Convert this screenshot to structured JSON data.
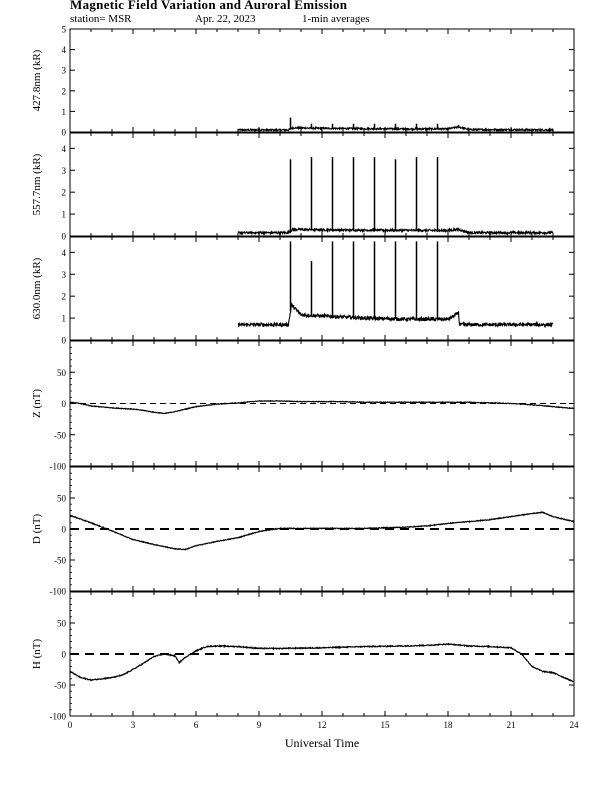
{
  "header": {
    "title": "Magnetic Field Variation and Auroral Emission",
    "station": "station= MSR",
    "date": "Apr. 22, 2023",
    "averaging": "1-min averages"
  },
  "chart_data": [
    {
      "type": "line",
      "ylabel": "427.8nm (kR)",
      "xlim": [
        0,
        24
      ],
      "ylim": [
        0,
        5
      ],
      "yticks": [
        0,
        1,
        2,
        3,
        4,
        5
      ],
      "data_window": [
        8.0,
        23.0
      ],
      "baseline": 0.1,
      "noise": 0.04,
      "spikes": [
        [
          10.5,
          0.7
        ],
        [
          11.5,
          0.4
        ],
        [
          12.5,
          0.4
        ],
        [
          13.5,
          0.4
        ],
        [
          14.5,
          0.4
        ],
        [
          15.5,
          0.4
        ],
        [
          16.5,
          0.4
        ],
        [
          17.5,
          0.4
        ],
        [
          18.5,
          0.35
        ]
      ],
      "series": [
        {
          "x": [
            8,
            10.4,
            10.6,
            12,
            14,
            16,
            18,
            18.5,
            19,
            23
          ],
          "y": [
            0.1,
            0.1,
            0.2,
            0.18,
            0.16,
            0.15,
            0.15,
            0.25,
            0.12,
            0.1
          ]
        }
      ]
    },
    {
      "type": "line",
      "ylabel": "557.7nm (kR)",
      "xlim": [
        0,
        24
      ],
      "ylim": [
        0,
        4.7
      ],
      "yticks": [
        0,
        1,
        2,
        3,
        4
      ],
      "data_window": [
        8.0,
        23.0
      ],
      "baseline": 0.15,
      "noise": 0.05,
      "spikes": [
        [
          10.5,
          3.5
        ],
        [
          11.5,
          3.6
        ],
        [
          12.5,
          3.6
        ],
        [
          13.5,
          3.6
        ],
        [
          14.5,
          3.6
        ],
        [
          15.5,
          3.5
        ],
        [
          16.5,
          3.6
        ],
        [
          17.5,
          3.6
        ]
      ],
      "series": [
        {
          "x": [
            8,
            10.4,
            10.6,
            12,
            14,
            16,
            18,
            18.5,
            19,
            23
          ],
          "y": [
            0.15,
            0.15,
            0.3,
            0.28,
            0.27,
            0.26,
            0.25,
            0.3,
            0.15,
            0.15
          ]
        }
      ]
    },
    {
      "type": "line",
      "ylabel": "630.0nm (kR)",
      "xlim": [
        0,
        24
      ],
      "ylim": [
        0,
        4.7
      ],
      "yticks": [
        0,
        1,
        2,
        3,
        4
      ],
      "data_window": [
        8.0,
        23.0
      ],
      "baseline": 0.7,
      "noise": 0.08,
      "spikes": [
        [
          10.5,
          4.5
        ],
        [
          11.5,
          3.6
        ],
        [
          12.5,
          4.5
        ],
        [
          13.5,
          4.5
        ],
        [
          14.5,
          4.5
        ],
        [
          15.5,
          4.5
        ],
        [
          16.5,
          4.5
        ],
        [
          17.5,
          4.5
        ]
      ],
      "series": [
        {
          "x": [
            8,
            10.4,
            10.55,
            11,
            12,
            13,
            14,
            16,
            18,
            18.3,
            18.5,
            18.55,
            23
          ],
          "y": [
            0.7,
            0.7,
            1.6,
            1.15,
            1.1,
            1.05,
            1.0,
            0.95,
            0.95,
            1.1,
            1.25,
            0.7,
            0.7
          ]
        }
      ]
    },
    {
      "type": "line",
      "ylabel": "Z (nT)",
      "xlim": [
        0,
        24
      ],
      "ylim": [
        -100,
        100
      ],
      "yticks": [
        -100,
        -50,
        0,
        50
      ],
      "zero_line": "thin-dashed",
      "noise": 0.5,
      "series": [
        {
          "x": [
            0,
            0.5,
            1,
            2,
            3,
            3.5,
            4,
            4.5,
            5,
            6,
            7,
            8,
            9,
            10,
            11,
            12,
            13,
            14,
            15,
            16,
            17,
            18,
            19,
            20,
            21,
            22,
            23,
            24
          ],
          "y": [
            2,
            0,
            -4,
            -7,
            -9,
            -11,
            -14,
            -16,
            -13,
            -5,
            -1,
            1,
            4,
            4,
            3,
            3,
            3,
            2,
            2,
            2,
            2,
            2,
            2,
            1,
            0,
            -2,
            -5,
            -8
          ]
        }
      ]
    },
    {
      "type": "line",
      "ylabel": "D (nT)",
      "xlim": [
        0,
        24
      ],
      "ylim": [
        -100,
        100
      ],
      "yticks": [
        -100,
        -50,
        0,
        50
      ],
      "zero_line": "thick-dashed",
      "noise": 0.6,
      "series": [
        {
          "x": [
            0,
            0.5,
            1,
            2,
            3,
            4,
            5,
            5.5,
            6,
            7,
            8,
            9,
            10,
            12,
            14,
            16,
            17,
            18,
            19,
            20,
            21,
            22,
            22.5,
            23,
            24
          ],
          "y": [
            22,
            16,
            10,
            -3,
            -17,
            -25,
            -32,
            -33,
            -27,
            -20,
            -14,
            -4,
            1,
            1,
            1,
            3,
            5,
            9,
            12,
            15,
            20,
            25,
            27,
            20,
            12
          ]
        }
      ]
    },
    {
      "type": "line",
      "ylabel": "H (nT)",
      "xlim": [
        0,
        24
      ],
      "ylim": [
        -100,
        100
      ],
      "yticks": [
        -100,
        -50,
        0,
        50
      ],
      "zero_line": "thick-dashed",
      "xticks": [
        0,
        3,
        6,
        9,
        12,
        15,
        18,
        21,
        24
      ],
      "xlabel": "Universal Time",
      "noise": 0.8,
      "series": [
        {
          "x": [
            0,
            0.5,
            1,
            1.5,
            2,
            2.5,
            3,
            3.5,
            4,
            4.5,
            5,
            5.2,
            5.5,
            6,
            6.5,
            7,
            8,
            9,
            10,
            12,
            14,
            16,
            17,
            18,
            19,
            20,
            21,
            21.5,
            22,
            22.5,
            23,
            24
          ],
          "y": [
            -28,
            -38,
            -42,
            -40,
            -38,
            -34,
            -25,
            -15,
            -4,
            0,
            -3,
            -14,
            -5,
            5,
            12,
            13,
            12,
            9,
            9,
            10,
            12,
            13,
            14,
            16,
            13,
            12,
            10,
            0,
            -20,
            -28,
            -30,
            -45
          ]
        }
      ]
    }
  ]
}
